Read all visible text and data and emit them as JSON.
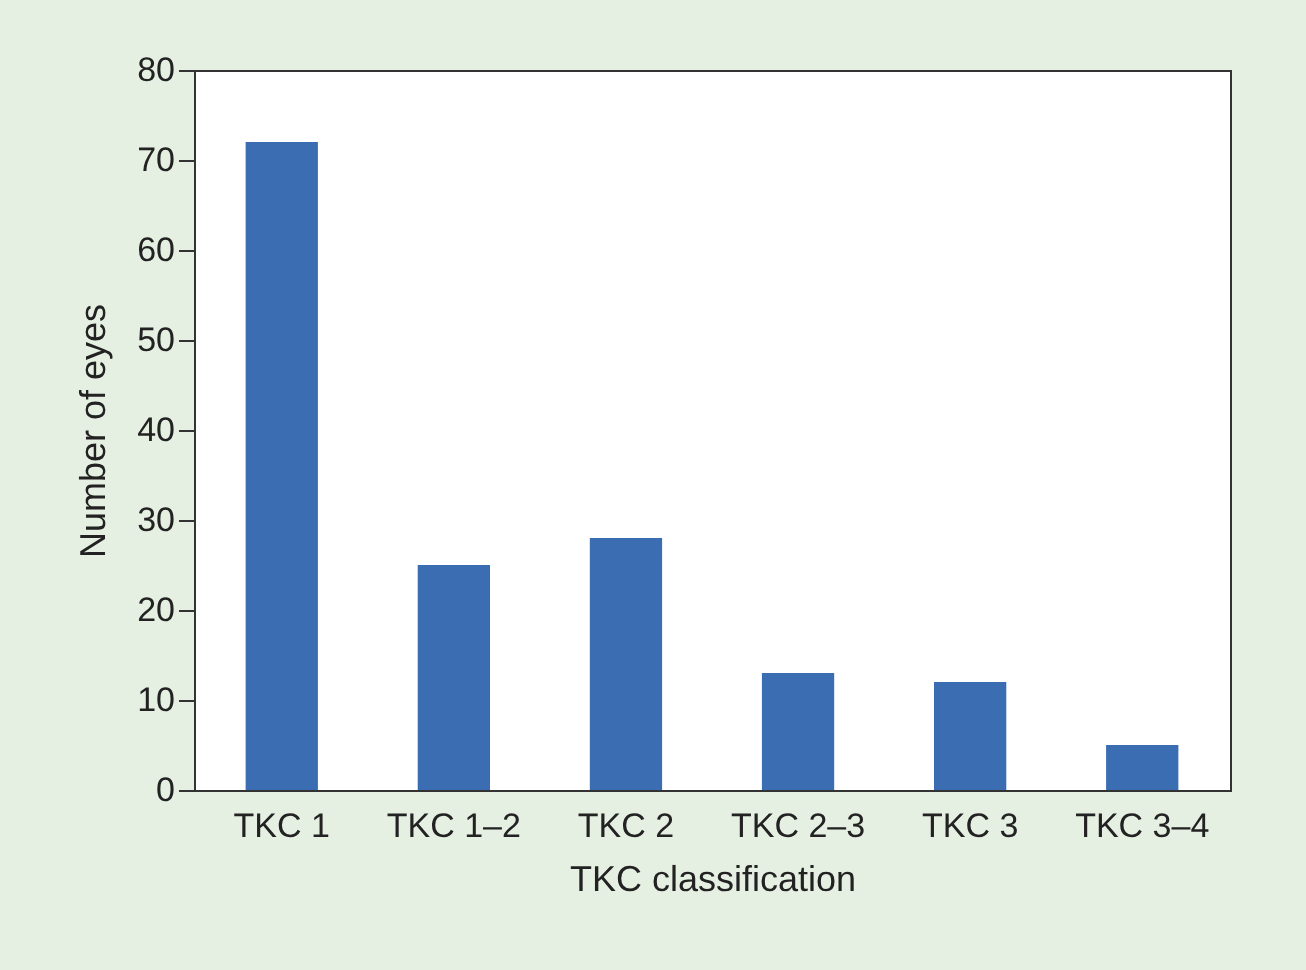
{
  "chart_data": {
    "type": "bar",
    "xlabel": "TKC classification",
    "ylabel": "Number of eyes",
    "categories": [
      "TKC 1",
      "TKC 1–2",
      "TKC 2",
      "TKC 2–3",
      "TKC 3",
      "TKC 3–4"
    ],
    "values": [
      72,
      25,
      28,
      13,
      12,
      5
    ],
    "color": "#3b6db3",
    "ylim": [
      0,
      80
    ],
    "yticks": [
      0,
      10,
      20,
      30,
      40,
      50,
      60,
      70,
      80
    ],
    "grid": false
  }
}
